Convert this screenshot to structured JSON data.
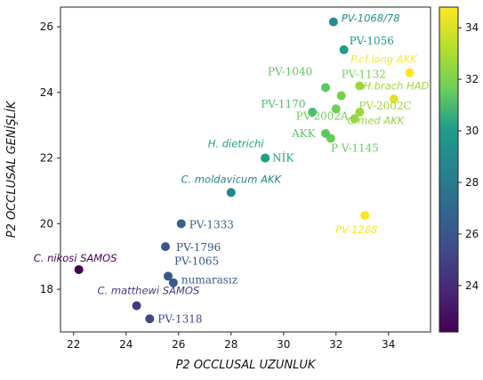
{
  "chart_data": {
    "type": "scatter",
    "xlabel": "P2 OCCLUSAL UZUNLUK",
    "ylabel": "P2 OCCLUSAL GENİŞLİK",
    "xlim": [
      21.5,
      35.6
    ],
    "ylim": [
      16.7,
      26.6
    ],
    "xticks": [
      22,
      24,
      26,
      28,
      30,
      32,
      34
    ],
    "yticks": [
      18,
      20,
      22,
      24,
      26
    ],
    "colorbar": {
      "colormap": "viridis",
      "range": [
        22.2,
        34.8
      ],
      "ticks": [
        24,
        26,
        28,
        30,
        32,
        34
      ]
    },
    "points": [
      {
        "x": 22.2,
        "y": 18.6,
        "c": 22.2,
        "label": "C. nikosi SAMOS"
      },
      {
        "x": 24.4,
        "y": 17.5,
        "c": 24.4,
        "label": "C. matthewi SAMOS"
      },
      {
        "x": 24.9,
        "y": 17.1,
        "c": 24.9,
        "label": "PV-1318"
      },
      {
        "x": 25.6,
        "y": 18.4,
        "c": 25.6,
        "label": "PV-1065"
      },
      {
        "x": 25.8,
        "y": 18.2,
        "c": 25.8,
        "label": "numarasız"
      },
      {
        "x": 25.5,
        "y": 19.3,
        "c": 25.5,
        "label": "PV-1796"
      },
      {
        "x": 26.1,
        "y": 20.0,
        "c": 26.1,
        "label": "PV-1333"
      },
      {
        "x": 28.0,
        "y": 20.95,
        "c": 28.0,
        "label": "C. moldavicum AKK"
      },
      {
        "x": 29.3,
        "y": 22.0,
        "c": 29.3,
        "label": "NİK"
      },
      {
        "x": 29.3,
        "y": 22.0,
        "c": 29.3,
        "label": "H. dietrichi"
      },
      {
        "x": 31.6,
        "y": 22.75,
        "c": 31.6,
        "label": "AKK"
      },
      {
        "x": 31.8,
        "y": 22.6,
        "c": 31.8,
        "label": "P V-1145"
      },
      {
        "x": 32.7,
        "y": 23.2,
        "c": 32.7,
        "label": "C.med AKK"
      },
      {
        "x": 31.1,
        "y": 23.4,
        "c": 31.1,
        "label": "PV-1170"
      },
      {
        "x": 32.0,
        "y": 23.5,
        "c": 32.0,
        "label": "PV-2002A"
      },
      {
        "x": 32.9,
        "y": 23.4,
        "c": 32.9,
        "label": "PV-2002C"
      },
      {
        "x": 32.2,
        "y": 23.9,
        "c": 32.2,
        "label": "PV-1132"
      },
      {
        "x": 31.6,
        "y": 24.15,
        "c": 31.6,
        "label": "PV-1040"
      },
      {
        "x": 32.9,
        "y": 24.2,
        "c": 32.9,
        "label": "H.brach HAD"
      },
      {
        "x": 34.2,
        "y": 23.8,
        "c": 34.2,
        "label": ""
      },
      {
        "x": 34.8,
        "y": 24.6,
        "c": 34.8,
        "label": "P.cf.long AKK"
      },
      {
        "x": 32.3,
        "y": 25.3,
        "c": 29.0,
        "label": "PV-1056"
      },
      {
        "x": 31.9,
        "y": 26.15,
        "c": 28.2,
        "label": "PV-1068/78"
      },
      {
        "x": 33.1,
        "y": 20.25,
        "c": 34.7,
        "label": "PV-1288"
      }
    ]
  }
}
